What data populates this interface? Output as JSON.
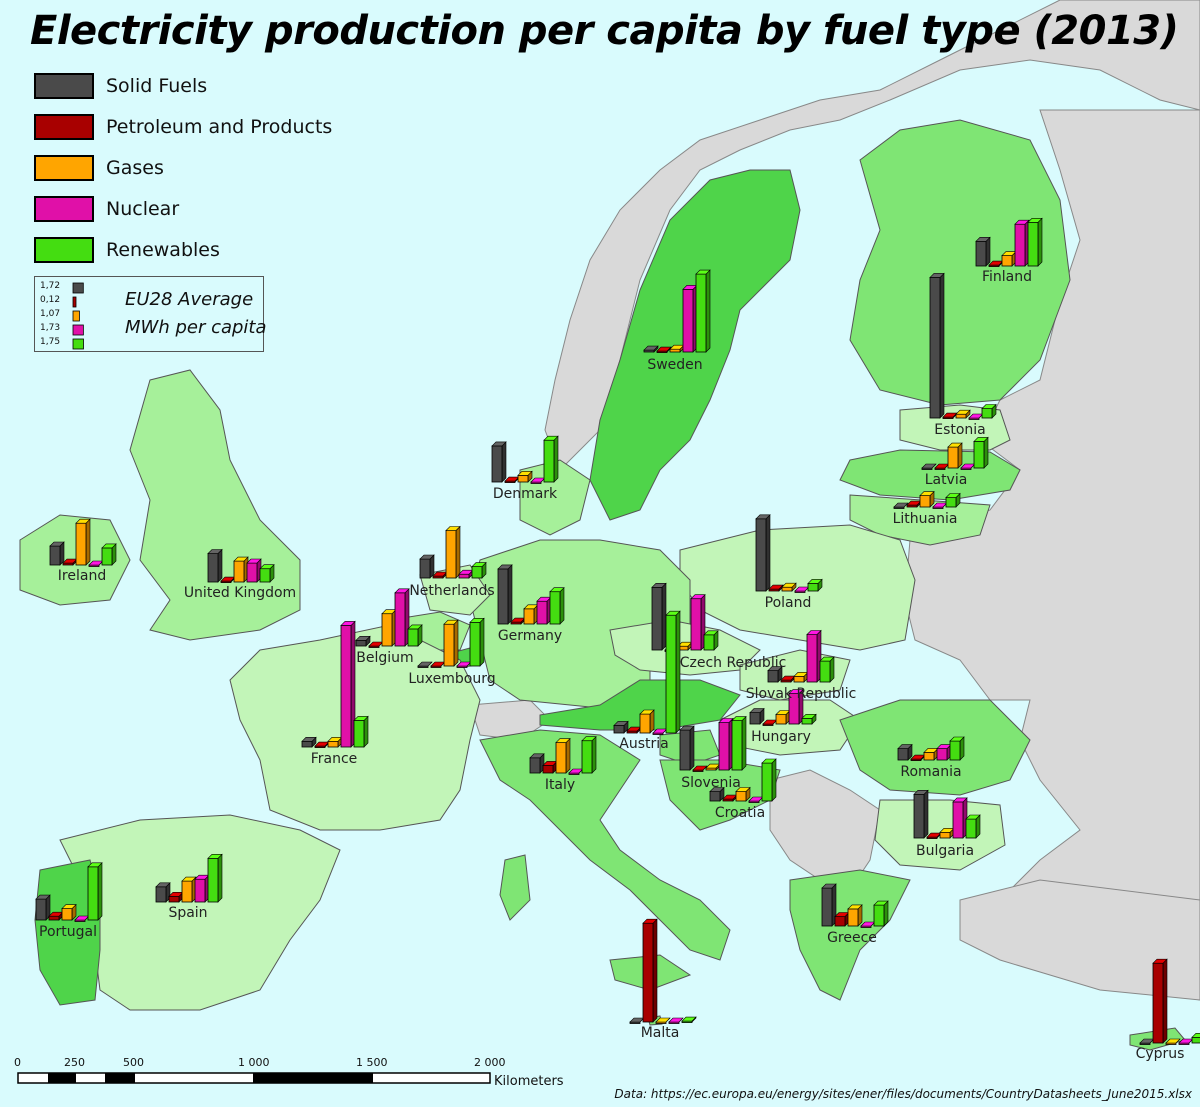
{
  "title": "Electricity production per capita by fuel type (2013)",
  "legend": [
    {
      "label": "Solid Fuels",
      "color": "#4a4a4a"
    },
    {
      "label": "Petroleum and Products",
      "color": "#a80000"
    },
    {
      "label": "Gases",
      "color": "#ffa500"
    },
    {
      "label": "Nuclear",
      "color": "#e010a8"
    },
    {
      "label": "Renewables",
      "color": "#44dd11"
    }
  ],
  "eu_average": {
    "line1": "EU28 Average",
    "line2": "MWh per capita",
    "values": [
      "1,72",
      "0,12",
      "1,07",
      "1,73",
      "1,75"
    ]
  },
  "scale": {
    "ticks": [
      "0",
      "250",
      "500",
      "1 000",
      "1 500",
      "2 000"
    ],
    "unit": "Kilometers"
  },
  "source": "Data: https://ec.europa.eu/energy/sites/ener/files/documents/CountryDatasheets_June2015.xlsx",
  "colors": {
    "sea": "#d9fbfd",
    "non_eu": "#d9d9d9",
    "eu_light": "#c2f5b8",
    "eu_mid": "#a6f09a",
    "eu_dark": "#7fe574",
    "eu_darker": "#4fd44a"
  },
  "chart_data": {
    "type": "bar",
    "categories": [
      "Solid Fuels",
      "Petroleum and Products",
      "Gases",
      "Nuclear",
      "Renewables"
    ],
    "unit": "MWh per capita",
    "countries": [
      {
        "name": "Finland",
        "values": [
          1.3,
          0.05,
          0.55,
          2.2,
          2.3
        ]
      },
      {
        "name": "Sweden",
        "values": [
          0.1,
          0.05,
          0.15,
          3.3,
          4.1
        ]
      },
      {
        "name": "Estonia",
        "values": [
          7.4,
          0.05,
          0.2,
          0.0,
          0.5
        ]
      },
      {
        "name": "Latvia",
        "values": [
          0.0,
          0.0,
          1.1,
          0.0,
          1.4
        ]
      },
      {
        "name": "Lithuania",
        "values": [
          0.0,
          0.1,
          0.6,
          0.0,
          0.5
        ]
      },
      {
        "name": "Denmark",
        "values": [
          1.9,
          0.05,
          0.35,
          0.0,
          2.2
        ]
      },
      {
        "name": "Ireland",
        "values": [
          1.0,
          0.1,
          2.2,
          0.0,
          0.9
        ]
      },
      {
        "name": "United Kingdom",
        "values": [
          1.5,
          0.05,
          1.1,
          1.0,
          0.7
        ]
      },
      {
        "name": "Netherlands",
        "values": [
          1.0,
          0.1,
          2.5,
          0.2,
          0.6
        ]
      },
      {
        "name": "Belgium",
        "values": [
          0.3,
          0.0,
          1.7,
          2.8,
          0.9
        ]
      },
      {
        "name": "Luxembourg",
        "values": [
          0.0,
          0.0,
          2.2,
          0.0,
          2.3
        ]
      },
      {
        "name": "Germany",
        "values": [
          2.9,
          0.1,
          0.8,
          1.2,
          1.7
        ]
      },
      {
        "name": "Poland",
        "values": [
          3.8,
          0.1,
          0.2,
          0.0,
          0.4
        ]
      },
      {
        "name": "Czech Republic",
        "values": [
          3.3,
          0.0,
          0.2,
          2.7,
          0.8
        ]
      },
      {
        "name": "Slovak Republic",
        "values": [
          0.6,
          0.1,
          0.3,
          2.5,
          1.1
        ]
      },
      {
        "name": "France",
        "values": [
          0.3,
          0.05,
          0.3,
          6.4,
          1.4
        ]
      },
      {
        "name": "Austria",
        "values": [
          0.4,
          0.1,
          1.0,
          0.0,
          6.2
        ]
      },
      {
        "name": "Hungary",
        "values": [
          0.6,
          0.0,
          0.5,
          1.6,
          0.3
        ]
      },
      {
        "name": "Italy",
        "values": [
          0.8,
          0.4,
          1.6,
          0.0,
          1.7
        ]
      },
      {
        "name": "Slovenia",
        "values": [
          2.1,
          0.0,
          0.1,
          2.5,
          2.6
        ]
      },
      {
        "name": "Croatia",
        "values": [
          0.5,
          0.1,
          0.5,
          0.0,
          2.0
        ]
      },
      {
        "name": "Romania",
        "values": [
          0.6,
          0.05,
          0.4,
          0.6,
          1.0
        ]
      },
      {
        "name": "Bulgaria",
        "values": [
          2.3,
          0.05,
          0.3,
          1.9,
          1.0
        ]
      },
      {
        "name": "Portugal",
        "values": [
          1.1,
          0.2,
          0.6,
          0.0,
          2.8
        ]
      },
      {
        "name": "Spain",
        "values": [
          0.8,
          0.3,
          1.1,
          1.2,
          2.3
        ]
      },
      {
        "name": "Greece",
        "values": [
          2.0,
          0.5,
          0.9,
          0.0,
          1.1
        ]
      },
      {
        "name": "Malta",
        "values": [
          0.0,
          5.2,
          0.0,
          0.0,
          0.05
        ]
      },
      {
        "name": "Cyprus",
        "values": [
          0.0,
          4.2,
          0.0,
          0.0,
          0.3
        ]
      }
    ]
  }
}
